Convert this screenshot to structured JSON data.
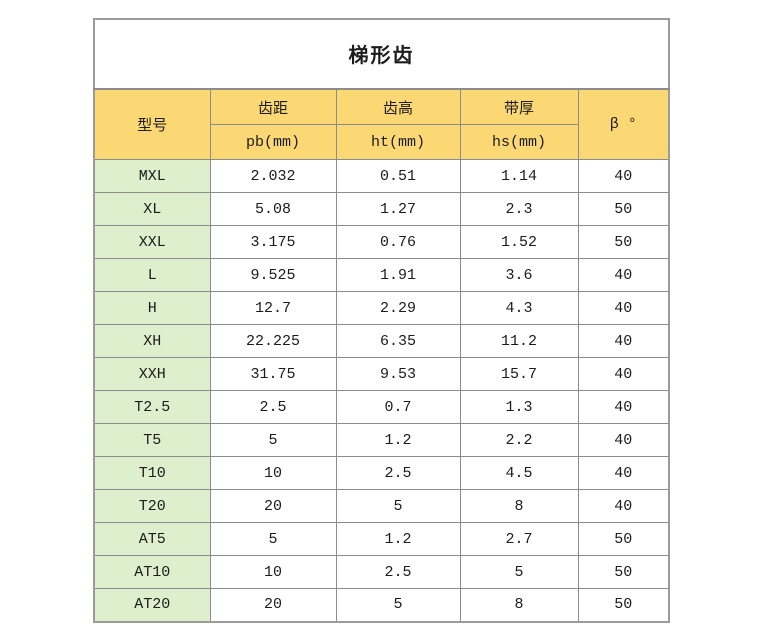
{
  "table": {
    "title": "梯形齿",
    "headers": {
      "model": "型号",
      "pitch_label": "齿距",
      "pitch_unit": "pb(mm)",
      "tooth_height_label": "齿高",
      "tooth_height_unit": "ht(mm)",
      "belt_thickness_label": "带厚",
      "belt_thickness_unit": "hs(mm)",
      "beta": "β °"
    },
    "rows": [
      {
        "model": "MXL",
        "pb": "2.032",
        "ht": "0.51",
        "hs": "1.14",
        "beta": "40"
      },
      {
        "model": "XL",
        "pb": "5.08",
        "ht": "1.27",
        "hs": "2.3",
        "beta": "50"
      },
      {
        "model": "XXL",
        "pb": "3.175",
        "ht": "0.76",
        "hs": "1.52",
        "beta": "50"
      },
      {
        "model": "L",
        "pb": "9.525",
        "ht": "1.91",
        "hs": "3.6",
        "beta": "40"
      },
      {
        "model": "H",
        "pb": "12.7",
        "ht": "2.29",
        "hs": "4.3",
        "beta": "40"
      },
      {
        "model": "XH",
        "pb": "22.225",
        "ht": "6.35",
        "hs": "11.2",
        "beta": "40"
      },
      {
        "model": "XXH",
        "pb": "31.75",
        "ht": "9.53",
        "hs": "15.7",
        "beta": "40"
      },
      {
        "model": "T2.5",
        "pb": "2.5",
        "ht": "0.7",
        "hs": "1.3",
        "beta": "40"
      },
      {
        "model": "T5",
        "pb": "5",
        "ht": "1.2",
        "hs": "2.2",
        "beta": "40"
      },
      {
        "model": "T10",
        "pb": "10",
        "ht": "2.5",
        "hs": "4.5",
        "beta": "40"
      },
      {
        "model": "T20",
        "pb": "20",
        "ht": "5",
        "hs": "8",
        "beta": "40"
      },
      {
        "model": "AT5",
        "pb": "5",
        "ht": "1.2",
        "hs": "2.7",
        "beta": "50"
      },
      {
        "model": "AT10",
        "pb": "10",
        "ht": "2.5",
        "hs": "5",
        "beta": "50"
      },
      {
        "model": "AT20",
        "pb": "20",
        "ht": "5",
        "hs": "8",
        "beta": "50"
      }
    ],
    "colors": {
      "header_background": "#FCD874",
      "model_column_background": "#DDEFCC",
      "inner_border": "#8C8C8C",
      "outer_border": "#9B9B9B"
    }
  }
}
